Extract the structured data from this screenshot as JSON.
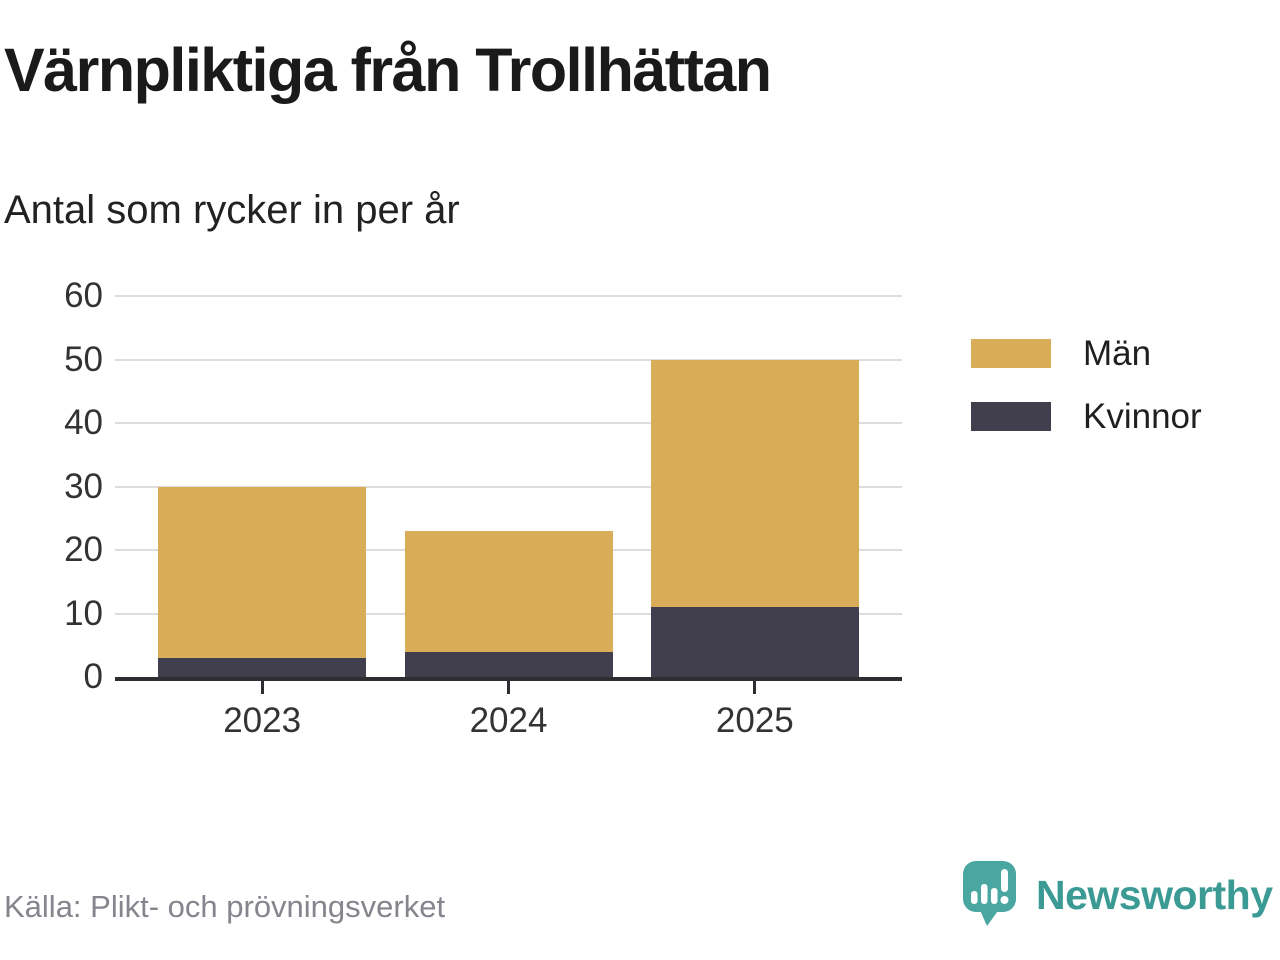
{
  "header": {
    "title": "Värnpliktiga från Trollhättan",
    "subtitle": "Antal som rycker in per år"
  },
  "legend": [
    {
      "label": "Män",
      "color": "#d9ac57"
    },
    {
      "label": "Kvinnor",
      "color": "#413f4e"
    }
  ],
  "footer": {
    "source": "Källa: Plikt- och prövningsverket",
    "brand": "Newsworthy",
    "brand_icon": "newsworthy-speech-bubble-bar-chart-icon"
  },
  "colors": {
    "men": "#d9ac57",
    "women": "#413f4e",
    "grid": "#dddddd",
    "axis": "#2e2d32",
    "tick_text": "#333333",
    "source_text": "#85858d",
    "brand_teal_icon": "#4aa6a0",
    "brand_teal_text": "#3b9b94",
    "background": "#ffffff"
  },
  "chart_data": {
    "type": "bar",
    "stacked": true,
    "title": "Värnpliktiga från Trollhättan",
    "subtitle": "Antal som rycker in per år",
    "categories": [
      "2023",
      "2024",
      "2025"
    ],
    "series": [
      {
        "name": "Män",
        "color": "#d9ac57",
        "values": [
          27,
          19,
          39
        ]
      },
      {
        "name": "Kvinnor",
        "color": "#413f4e",
        "values": [
          3,
          4,
          11
        ]
      }
    ],
    "stack_order_bottom_to_top": [
      "Kvinnor",
      "Män"
    ],
    "totals": [
      30,
      23,
      50
    ],
    "xlabel": "",
    "ylabel": "",
    "ylim": [
      0,
      60
    ],
    "yticks": [
      0,
      10,
      20,
      30,
      40,
      50,
      60
    ],
    "grid": true,
    "legend_position": "right",
    "source": "Källa: Plikt- och prövningsverket"
  }
}
